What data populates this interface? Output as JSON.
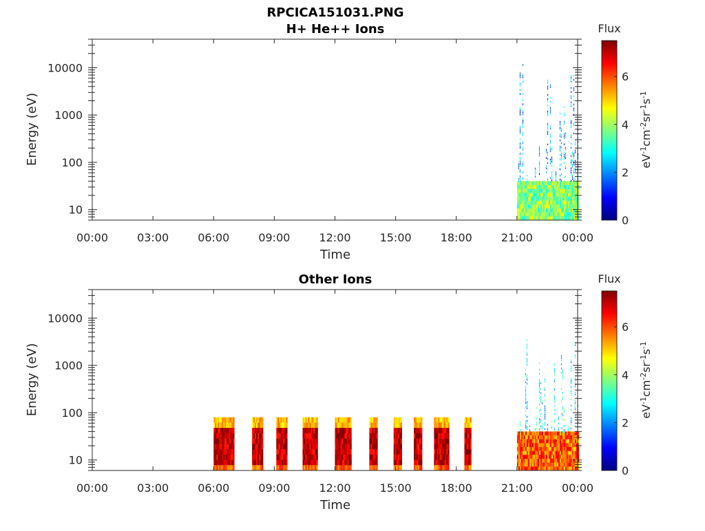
{
  "figure_title": "RPCICA151031.PNG",
  "colorbar_title": "Flux",
  "colorbar_label": "eV-1cm-2sr-1s-1",
  "colorbar_ticks": [
    "0",
    "2",
    "4",
    "6"
  ],
  "colorbar_range": [
    0,
    7.5
  ],
  "colormap": [
    "#00007f",
    "#0000ff",
    "#007fff",
    "#00ffff",
    "#7fff7f",
    "#ffff00",
    "#ff7f00",
    "#ff0000",
    "#7f0000"
  ],
  "chart_data": [
    {
      "type": "heatmap",
      "title": "H+ He++ Ions",
      "xlabel": "Time",
      "ylabel": "Energy (eV)",
      "xticks": [
        "00:00",
        "03:00",
        "06:00",
        "09:00",
        "12:00",
        "15:00",
        "18:00",
        "21:00",
        "00:00"
      ],
      "yticks": [
        "10",
        "100",
        "1000",
        "10000"
      ],
      "xlim_hours": [
        0,
        24
      ],
      "ylim_eV": [
        6,
        40000
      ],
      "yscale": "log",
      "intervals": [
        {
          "start_h": 21.0,
          "end_h": 24.0,
          "emin_eV": 6,
          "emax_eV": 40,
          "level": 3.8,
          "note": "dense low-energy band"
        },
        {
          "start_h": 21.0,
          "end_h": 24.0,
          "emin_eV": 40,
          "emax_eV": 12000,
          "level": 2.2,
          "note": "sparse streaks"
        }
      ]
    },
    {
      "type": "heatmap",
      "title": "Other Ions",
      "xlabel": "Time",
      "ylabel": "Energy (eV)",
      "xticks": [
        "00:00",
        "03:00",
        "06:00",
        "09:00",
        "12:00",
        "15:00",
        "18:00",
        "21:00",
        "00:00"
      ],
      "yticks": [
        "10",
        "100",
        "1000",
        "10000"
      ],
      "xlim_hours": [
        0,
        24
      ],
      "ylim_eV": [
        6,
        40000
      ],
      "yscale": "log",
      "intervals": [
        {
          "start_h": 6.0,
          "end_h": 7.0,
          "emin_eV": 6,
          "emax_eV": 80,
          "level": 7.0
        },
        {
          "start_h": 7.9,
          "end_h": 8.4,
          "emin_eV": 6,
          "emax_eV": 80,
          "level": 7.0
        },
        {
          "start_h": 9.1,
          "end_h": 9.6,
          "emin_eV": 6,
          "emax_eV": 80,
          "level": 7.0
        },
        {
          "start_h": 10.4,
          "end_h": 11.1,
          "emin_eV": 6,
          "emax_eV": 80,
          "level": 7.0
        },
        {
          "start_h": 12.0,
          "end_h": 12.8,
          "emin_eV": 6,
          "emax_eV": 80,
          "level": 7.0
        },
        {
          "start_h": 13.7,
          "end_h": 14.1,
          "emin_eV": 6,
          "emax_eV": 80,
          "level": 7.0
        },
        {
          "start_h": 14.9,
          "end_h": 15.3,
          "emin_eV": 6,
          "emax_eV": 80,
          "level": 7.0
        },
        {
          "start_h": 15.9,
          "end_h": 16.3,
          "emin_eV": 6,
          "emax_eV": 80,
          "level": 7.0
        },
        {
          "start_h": 16.9,
          "end_h": 17.6,
          "emin_eV": 6,
          "emax_eV": 80,
          "level": 7.0
        },
        {
          "start_h": 18.4,
          "end_h": 18.7,
          "emin_eV": 6,
          "emax_eV": 80,
          "level": 7.0
        },
        {
          "start_h": 21.0,
          "end_h": 24.0,
          "emin_eV": 6,
          "emax_eV": 40,
          "level": 5.8,
          "note": "dense low-energy band"
        },
        {
          "start_h": 21.0,
          "end_h": 24.0,
          "emin_eV": 40,
          "emax_eV": 4000,
          "level": 2.8,
          "note": "sparse streaks"
        }
      ]
    }
  ]
}
